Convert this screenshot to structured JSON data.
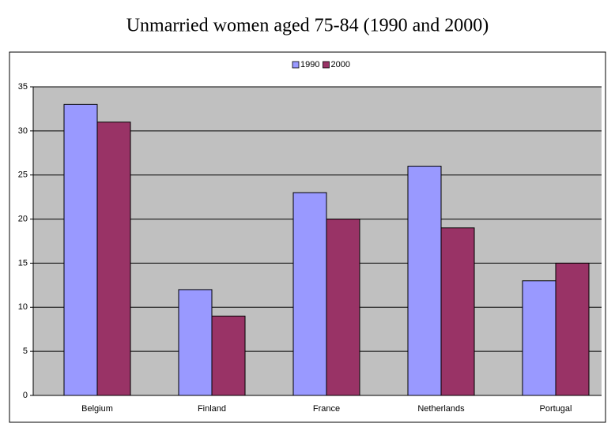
{
  "chart_data": {
    "type": "bar",
    "title": "Unmarried women aged 75-84 (1990 and 2000)",
    "categories": [
      "Belgium",
      "Finland",
      "France",
      "Netherlands",
      "Portugal"
    ],
    "series": [
      {
        "name": "1990",
        "color": "#9999ff",
        "values": [
          33,
          12,
          23,
          26,
          13
        ]
      },
      {
        "name": "2000",
        "color": "#993366",
        "values": [
          31,
          9,
          20,
          19,
          15
        ]
      }
    ],
    "ylim": [
      0,
      35
    ],
    "yticks": [
      0,
      5,
      10,
      15,
      20,
      25,
      30,
      35
    ],
    "grid": true,
    "legend": "top"
  }
}
